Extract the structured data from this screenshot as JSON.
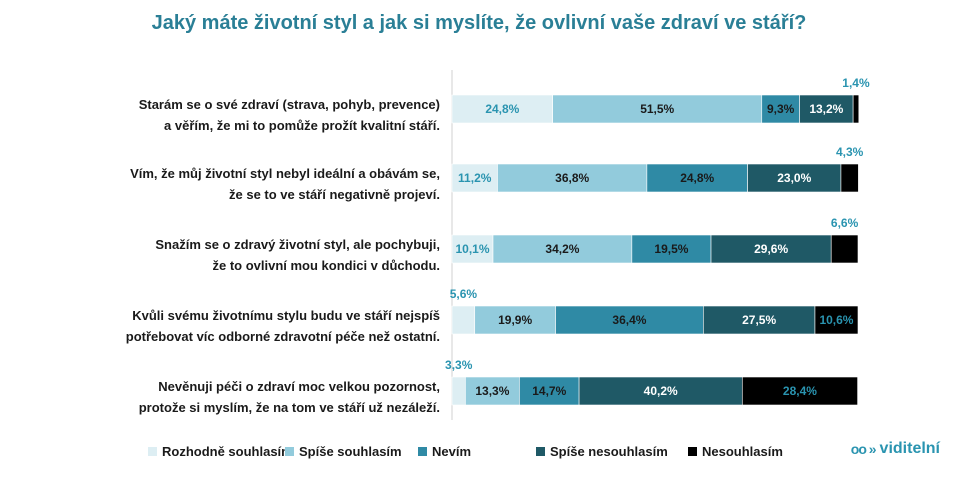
{
  "chart_data": {
    "type": "bar",
    "orientation": "horizontal",
    "stacked": true,
    "title": "Jaký máte životní styl a jak si myslíte, že ovlivní vaše zdraví ve stáří?",
    "categories": [
      [
        "Starám se o své zdraví (strava, pohyb, prevence)",
        "a věřím, že mi to pomůže prožít kvalitní stáří."
      ],
      [
        "Vím, že můj životní styl nebyl ideální a obávám se,",
        "že se to ve stáří negativně projeví."
      ],
      [
        "Snažím se o zdravý životní styl, ale pochybuji,",
        "že to ovlivní mou kondici v důchodu."
      ],
      [
        "Kvůli svému životnímu stylu budu ve stáří nejspíš",
        "potřebovat víc odborné zdravotní péče než ostatní."
      ],
      [
        "Nevěnuji péči o zdraví moc velkou pozornost,",
        "protože si myslím, že na tom ve stáří už nezáleží."
      ]
    ],
    "series": [
      {
        "name": "Rozhodně souhlasím",
        "color": "#ddeef3",
        "values": [
          24.8,
          11.2,
          10.1,
          5.6,
          3.3
        ],
        "labels": [
          "24,8%",
          "11,2%",
          "10,1%",
          "5,6%",
          "3,3%"
        ]
      },
      {
        "name": "Spíše souhlasím",
        "color": "#92cbdc",
        "values": [
          51.5,
          36.8,
          34.2,
          19.9,
          13.3
        ],
        "labels": [
          "51,5%",
          "36,8%",
          "34,2%",
          "19,9%",
          "13,3%"
        ]
      },
      {
        "name": "Nevím",
        "color": "#2f8aa5",
        "values": [
          9.3,
          24.8,
          19.5,
          36.4,
          14.7
        ],
        "labels": [
          "9,3%",
          "24,8%",
          "19,5%",
          "36,4%",
          "14,7%"
        ]
      },
      {
        "name": "Spíše nesouhlasím",
        "color": "#1f5966",
        "values": [
          13.2,
          23.0,
          29.6,
          27.5,
          40.2
        ],
        "labels": [
          "13,2%",
          "23,0%",
          "29,6%",
          "27,5%",
          "40,2%"
        ]
      },
      {
        "name": "Nesouhlasím",
        "color": "#000000",
        "values": [
          1.4,
          4.3,
          6.6,
          10.6,
          28.4
        ],
        "labels": [
          "1,4%",
          "4,3%",
          "6,6%",
          "10,6%",
          "28,4%"
        ]
      }
    ],
    "xlim": [
      0,
      100
    ],
    "legend_position": "bottom"
  },
  "brand": {
    "mark": "oo »",
    "name": "viditelní"
  }
}
